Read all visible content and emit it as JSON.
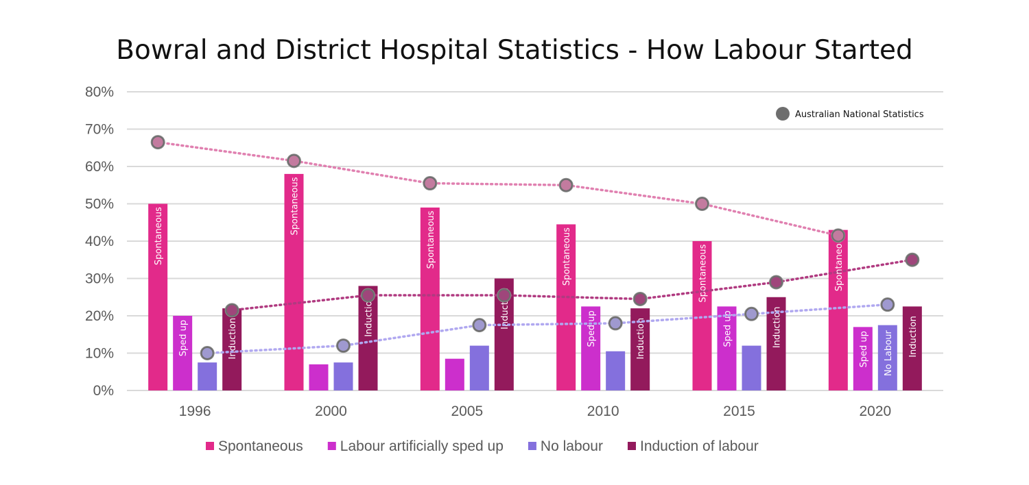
{
  "chart_data": {
    "type": "bar",
    "title": "Bowral and District  Hospital Statistics   - How Labour Started",
    "xlabel": "",
    "ylabel": "",
    "ylim": [
      0,
      80
    ],
    "ytick_labels": [
      "0%",
      "10%",
      "20%",
      "30%",
      "40%",
      "50%",
      "60%",
      "70%",
      "80%"
    ],
    "categories": [
      "1996",
      "2000",
      "2005",
      "2010",
      "2015",
      "2020"
    ],
    "series": [
      {
        "name": "Spontaneous",
        "color": "#e22a8a",
        "values": [
          50,
          58,
          49,
          44.5,
          40,
          43
        ],
        "bar_labels": [
          "Spontaneous",
          "Spontaneous",
          "Spontaneous",
          "Spontaneous",
          "Spontaneous",
          "Spontaneous"
        ]
      },
      {
        "name": "Labour artificially sped up",
        "color": "#cc2fcc",
        "values": [
          20,
          7,
          8.5,
          22.5,
          22.5,
          17
        ],
        "bar_labels": [
          "Sped up",
          "",
          "",
          "Sped up",
          "Sped up",
          "Sped up"
        ]
      },
      {
        "name": "No labour",
        "color": "#8470dd",
        "values": [
          7.5,
          7.5,
          12,
          10.5,
          12,
          17.5
        ],
        "bar_labels": [
          "",
          "",
          "",
          "",
          "",
          "No Labour"
        ]
      },
      {
        "name": "Induction of labour",
        "color": "#931a5c",
        "values": [
          22,
          28,
          30,
          22,
          25,
          22.5
        ],
        "bar_labels": [
          "Induction",
          "Induction",
          "Induction",
          "Induction",
          "Induction",
          "Induction"
        ]
      }
    ],
    "national_statistics": {
      "name": "Australian National Statistics",
      "marker_color": "#6e6e6e",
      "lines": [
        {
          "series": "Spontaneous",
          "color": "#e080b0",
          "values": [
            66.5,
            61.5,
            55.5,
            55,
            50,
            41.5
          ]
        },
        {
          "series": "Induction of labour",
          "color": "#b03a80",
          "values": [
            21.5,
            25.5,
            25.5,
            24.5,
            29,
            35
          ]
        },
        {
          "series": "No labour",
          "color": "#b0a8f0",
          "values": [
            10,
            12,
            17.5,
            18,
            20.5,
            23
          ]
        }
      ]
    },
    "legend_position": "bottom",
    "grid": true
  }
}
